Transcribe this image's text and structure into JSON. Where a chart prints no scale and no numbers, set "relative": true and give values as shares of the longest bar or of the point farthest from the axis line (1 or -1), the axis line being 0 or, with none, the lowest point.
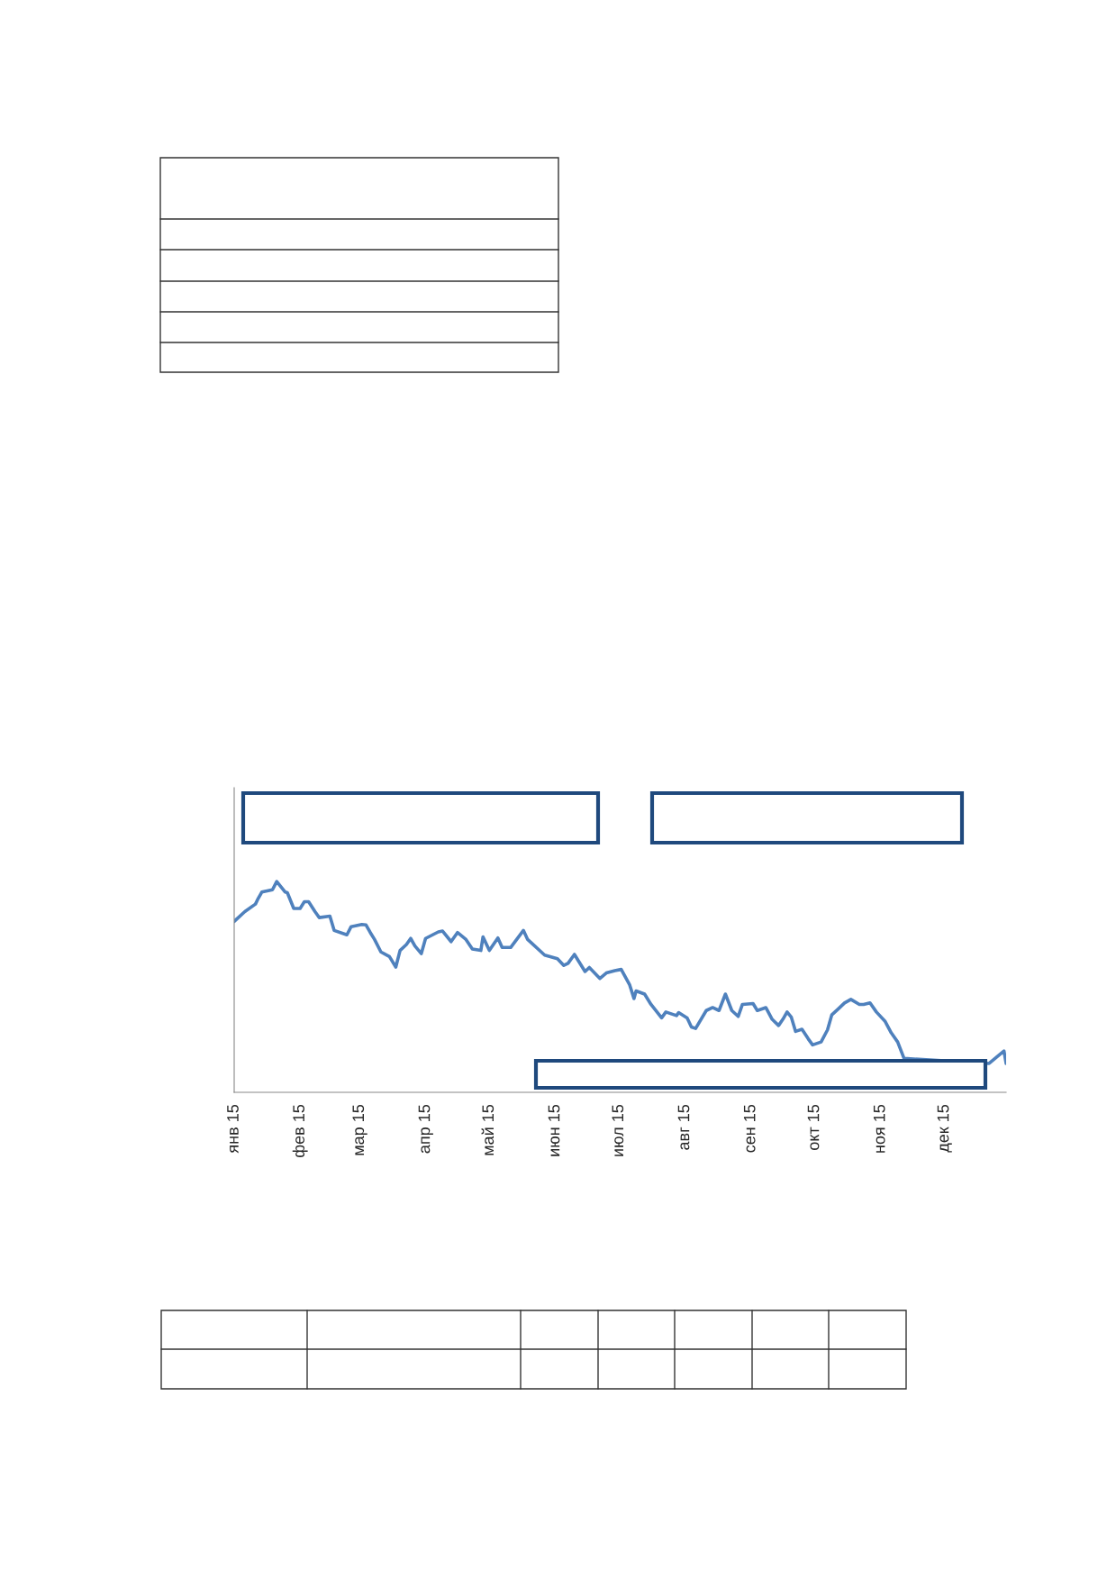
{
  "chart_data": {
    "type": "line",
    "relative": true,
    "xlim": [
      "2015-01-01",
      "2015-12-30"
    ],
    "xticks": [
      {
        "value": "2015-01-01",
        "label": "янв 15"
      },
      {
        "value": "2015-02-01",
        "label": "фев 15"
      },
      {
        "value": "2015-03-01",
        "label": "мар 15"
      },
      {
        "value": "2015-04-01",
        "label": "апр 15"
      },
      {
        "value": "2015-05-01",
        "label": "май 15"
      },
      {
        "value": "2015-06-01",
        "label": "июн 15"
      },
      {
        "value": "2015-07-01",
        "label": "июл 15"
      },
      {
        "value": "2015-08-01",
        "label": "авг 15"
      },
      {
        "value": "2015-09-01",
        "label": "сен 15"
      },
      {
        "value": "2015-10-01",
        "label": "окт 15"
      },
      {
        "value": "2015-11-01",
        "label": "ноя 15"
      },
      {
        "value": "2015-12-01",
        "label": "дек 15"
      }
    ],
    "x": [
      "2015-01-01",
      "2015-01-06",
      "2015-01-11",
      "2015-01-12",
      "2015-01-14",
      "2015-01-19",
      "2015-01-21",
      "2015-01-25",
      "2015-01-26",
      "2015-01-29",
      "2015-02-01",
      "2015-02-03",
      "2015-02-05",
      "2015-02-08",
      "2015-02-10",
      "2015-02-15",
      "2015-02-17",
      "2015-02-23",
      "2015-02-25",
      "2015-03-02",
      "2015-03-04",
      "2015-03-06",
      "2015-03-08",
      "2015-03-11",
      "2015-03-15",
      "2015-03-18",
      "2015-03-20",
      "2015-03-23",
      "2015-03-25",
      "2015-03-27",
      "2015-03-30",
      "2015-04-01",
      "2015-04-07",
      "2015-04-09",
      "2015-04-13",
      "2015-04-16",
      "2015-04-20",
      "2015-04-23",
      "2015-04-27",
      "2015-04-28",
      "2015-05-01",
      "2015-05-05",
      "2015-05-07",
      "2015-05-11",
      "2015-05-17",
      "2015-05-19",
      "2015-05-27",
      "2015-06-02",
      "2015-06-05",
      "2015-06-07",
      "2015-06-10",
      "2015-06-15",
      "2015-06-17",
      "2015-06-22",
      "2015-06-25",
      "2015-06-29",
      "2015-07-02",
      "2015-07-06",
      "2015-07-08",
      "2015-07-09",
      "2015-07-13",
      "2015-07-16",
      "2015-07-21",
      "2015-07-23",
      "2015-07-28",
      "2015-07-29",
      "2015-08-02",
      "2015-08-04",
      "2015-08-06",
      "2015-08-11",
      "2015-08-14",
      "2015-08-17",
      "2015-08-20",
      "2015-08-23",
      "2015-08-26",
      "2015-08-28",
      "2015-09-02",
      "2015-09-04",
      "2015-09-08",
      "2015-09-11",
      "2015-09-14",
      "2015-09-16",
      "2015-09-18",
      "2015-09-20",
      "2015-09-22",
      "2015-09-25",
      "2015-09-28",
      "2015-09-30",
      "2015-10-04",
      "2015-10-07",
      "2015-10-09",
      "2015-10-12",
      "2015-10-15",
      "2015-10-18",
      "2015-10-22",
      "2015-10-24",
      "2015-10-27",
      "2015-10-30",
      "2015-11-03",
      "2015-11-06",
      "2015-11-09",
      "2015-11-12",
      "2015-12-22",
      "2015-12-29",
      "2015-12-30"
    ],
    "series": [
      {
        "color": "#4f81bd",
        "values": [
          0.811,
          0.857,
          0.893,
          0.914,
          0.95,
          0.961,
          1.0,
          0.95,
          0.947,
          0.872,
          0.872,
          0.904,
          0.904,
          0.857,
          0.829,
          0.836,
          0.768,
          0.747,
          0.786,
          0.796,
          0.794,
          0.758,
          0.725,
          0.666,
          0.644,
          0.594,
          0.673,
          0.701,
          0.73,
          0.694,
          0.658,
          0.73,
          0.761,
          0.765,
          0.715,
          0.758,
          0.725,
          0.68,
          0.673,
          0.737,
          0.673,
          0.732,
          0.687,
          0.687,
          0.768,
          0.725,
          0.651,
          0.634,
          0.602,
          0.612,
          0.654,
          0.573,
          0.592,
          0.54,
          0.566,
          0.577,
          0.583,
          0.509,
          0.445,
          0.481,
          0.466,
          0.417,
          0.353,
          0.381,
          0.364,
          0.378,
          0.353,
          0.31,
          0.303,
          0.388,
          0.402,
          0.388,
          0.466,
          0.388,
          0.36,
          0.417,
          0.421,
          0.388,
          0.402,
          0.346,
          0.317,
          0.346,
          0.381,
          0.356,
          0.289,
          0.299,
          0.253,
          0.225,
          0.239,
          0.296,
          0.367,
          0.395,
          0.424,
          0.441,
          0.417,
          0.417,
          0.424,
          0.381,
          0.338,
          0.282,
          0.239,
          0.161,
          0.137,
          0.196,
          0.137
        ]
      }
    ],
    "line_style": "solid",
    "marker": "none",
    "grid": false
  }
}
